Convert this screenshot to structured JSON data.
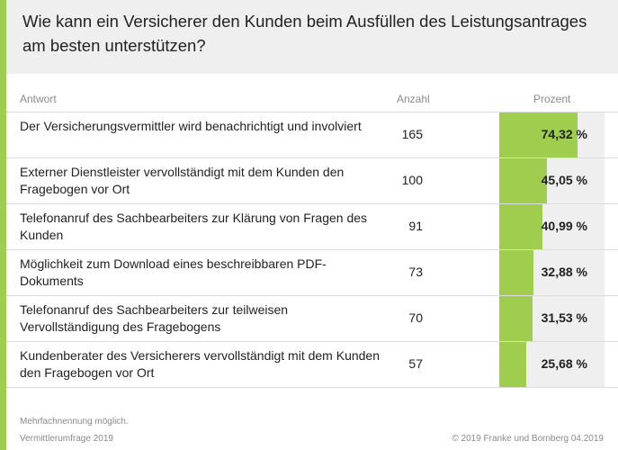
{
  "title": "Wie kann ein Versicherer den Kunden beim Ausfüllen des Leistungsantrages am besten unterstützen?",
  "columns": {
    "answer": "Antwort",
    "count": "Anzahl",
    "percent": "Prozent"
  },
  "colors": {
    "accent": "#9fcd4e",
    "bar_track": "#efefef",
    "header_bg": "#efefef"
  },
  "chart_data": {
    "type": "table",
    "title": "Wie kann ein Versicherer den Kunden beim Ausfüllen des Leistungsantrages am besten unterstützen?",
    "columns": [
      "Antwort",
      "Anzahl",
      "Prozent"
    ],
    "rows": [
      {
        "answer": "Der Versicherungsvermittler wird benachrichtigt und involviert",
        "count": "165",
        "percent_label": "74,32 %",
        "percent": 74.32
      },
      {
        "answer": "Externer Dienstleister vervollständigt mit dem Kunden den Fragebogen vor Ort",
        "count": "100",
        "percent_label": "45,05 %",
        "percent": 45.05
      },
      {
        "answer": "Telefonanruf des Sachbearbeiters zur Klärung von Fragen des Kunden",
        "count": "91",
        "percent_label": "40,99 %",
        "percent": 40.99
      },
      {
        "answer": "Möglichkeit zum Download eines beschreibbaren PDF-Dokuments",
        "count": "73",
        "percent_label": "32,88 %",
        "percent": 32.88
      },
      {
        "answer": "Telefonanruf des Sachbearbeiters zur teilweisen Vervollständigung des Fragebogens",
        "count": "70",
        "percent_label": "31,53 %",
        "percent": 31.53
      },
      {
        "answer": "Kundenberater des Versicherers vervollständigt mit dem Kunden den Fragebogen vor Ort",
        "count": "57",
        "percent_label": "25,68 %",
        "percent": 25.68
      }
    ],
    "bar_scale_max": 100
  },
  "footer": {
    "note": "Mehrfachnennung möglich.",
    "source": "Vermittlerumfrage 2019",
    "copyright": "© 2019 Franke und Bornberg 04.2019"
  }
}
